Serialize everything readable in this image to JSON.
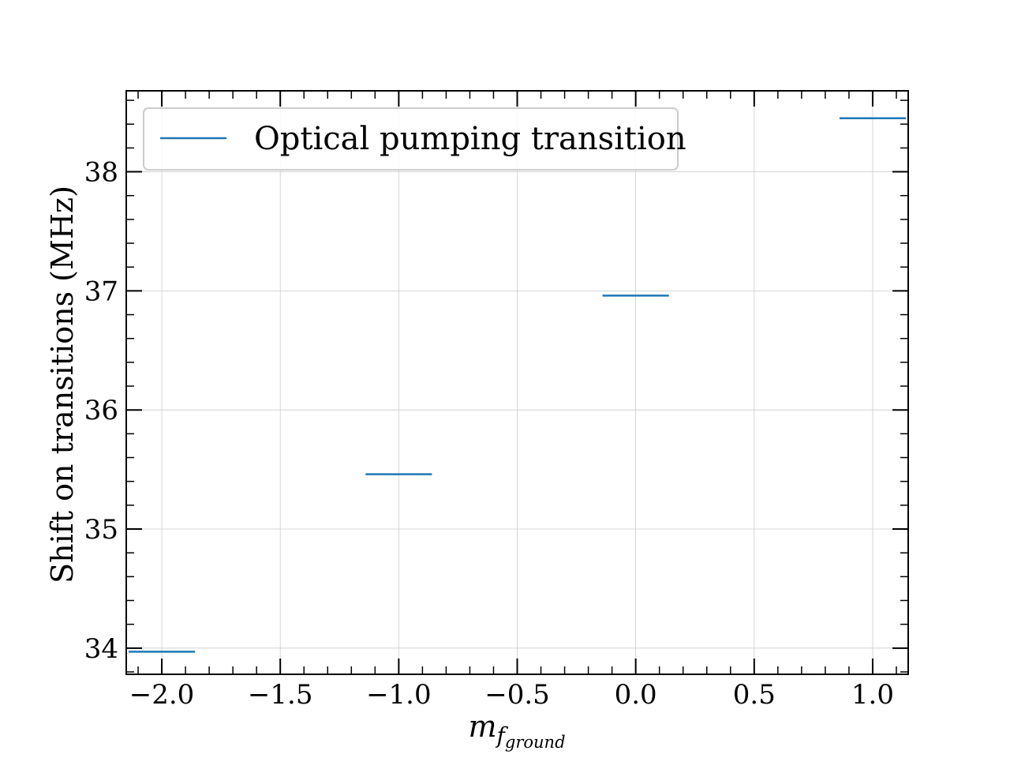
{
  "chart_data": {
    "type": "line",
    "xlabel": "m",
    "xlabel_subscript": "f",
    "xlabel_subsubscript": "ground",
    "ylabel": "Shift on transitions (MHz)",
    "xlim": [
      -2.15,
      1.15
    ],
    "ylim": [
      33.78,
      38.68
    ],
    "x_ticks": [
      -2.0,
      -1.5,
      -1.0,
      -0.5,
      0.0,
      0.5,
      1.0
    ],
    "x_tick_labels": [
      "−2.0",
      "−1.5",
      "−1.0",
      "−0.5",
      "0.0",
      "0.5",
      "1.0"
    ],
    "y_ticks": [
      34,
      35,
      36,
      37,
      38
    ],
    "y_tick_labels": [
      "34",
      "35",
      "36",
      "37",
      "38"
    ],
    "grid": true,
    "legend_placement": "top-left",
    "series": [
      {
        "name": "Optical pumping transition",
        "color": "#1f77b4",
        "segments": [
          {
            "x": [
              -2.14,
              -1.86
            ],
            "y": 33.97
          },
          {
            "x": [
              -1.14,
              -0.86
            ],
            "y": 35.46
          },
          {
            "x": [
              -0.14,
              0.14
            ],
            "y": 36.96
          },
          {
            "x": [
              0.86,
              1.14
            ],
            "y": 38.45
          }
        ]
      }
    ]
  }
}
